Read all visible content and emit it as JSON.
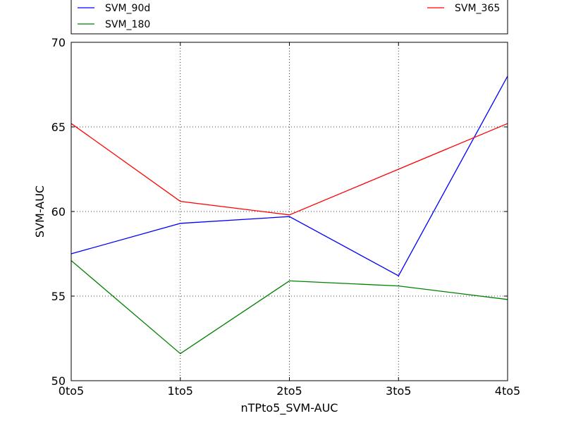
{
  "chart_data": {
    "type": "line",
    "categories": [
      "0to5",
      "1to5",
      "2to5",
      "3to5",
      "4to5"
    ],
    "xlabel": "nTPto5_SVM-AUC",
    "ylabel": "SVM-AUC",
    "ylim": [
      50,
      70
    ],
    "yticks": [
      "50",
      "55",
      "60",
      "65",
      "70"
    ],
    "grid": true,
    "legend_position": "top",
    "series": [
      {
        "name": "SVM_90d",
        "color": "#0000ff",
        "values": [
          57.5,
          59.3,
          59.7,
          56.2,
          68.0
        ]
      },
      {
        "name": "SVM_180",
        "color": "#008000",
        "values": [
          57.1,
          51.6,
          55.9,
          55.6,
          54.8
        ]
      },
      {
        "name": "SVM_365",
        "color": "#ff0000",
        "values": [
          65.2,
          60.6,
          59.8,
          62.5,
          65.2
        ]
      }
    ]
  }
}
